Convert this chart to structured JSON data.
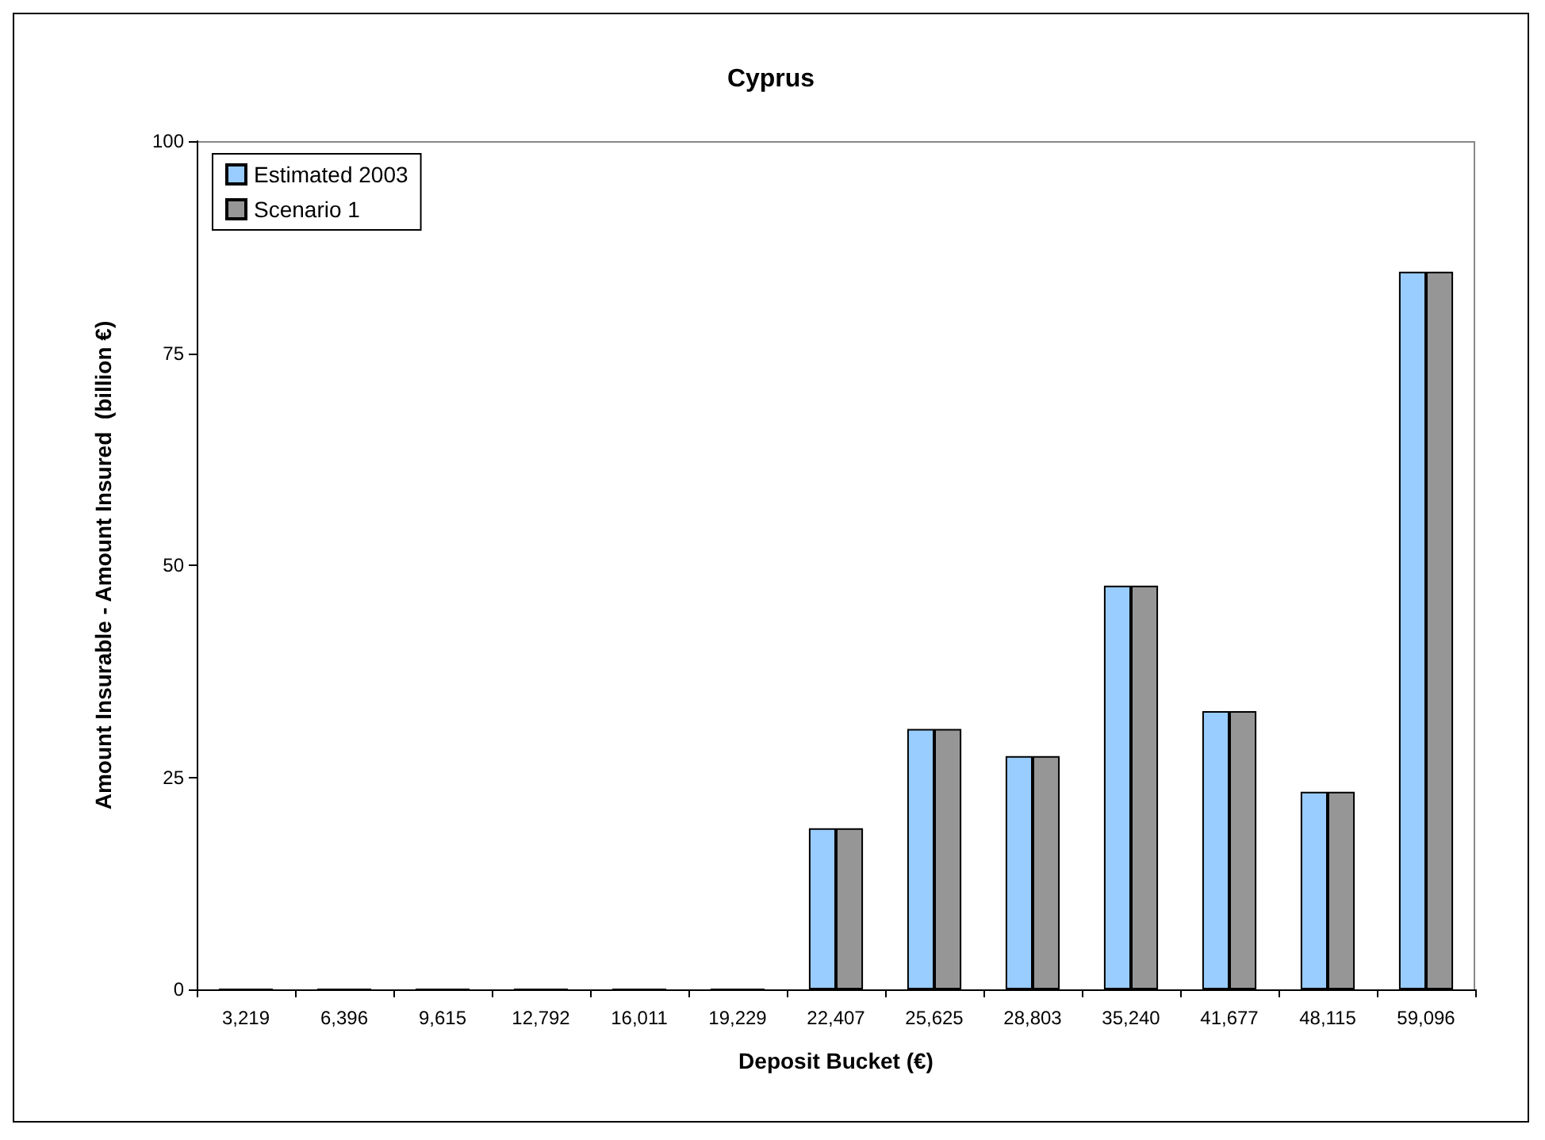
{
  "chart_data": {
    "type": "bar",
    "title": "Cyprus",
    "xlabel": "Deposit Bucket (€)",
    "ylabel": "Amount Insurable - Amount Insured  (billion €)",
    "categories": [
      "3,219",
      "6,396",
      "9,615",
      "12,792",
      "16,011",
      "19,229",
      "22,407",
      "25,625",
      "28,803",
      "35,240",
      "41,677",
      "48,115",
      "59,096"
    ],
    "series": [
      {
        "name": "Estimated 2003",
        "color": "#99ccff",
        "values": [
          0,
          0,
          0,
          0,
          0,
          0,
          19.0,
          30.7,
          27.5,
          47.6,
          32.8,
          23.3,
          84.6
        ]
      },
      {
        "name": "Scenario 1",
        "color": "#969696",
        "values": [
          0,
          0,
          0,
          0,
          0,
          0,
          19.0,
          30.7,
          27.5,
          47.6,
          32.8,
          23.3,
          84.6
        ]
      }
    ],
    "ylim": [
      0,
      100
    ],
    "yticks": [
      0,
      25,
      50,
      75,
      100
    ],
    "grid": false,
    "legend": "top left"
  }
}
